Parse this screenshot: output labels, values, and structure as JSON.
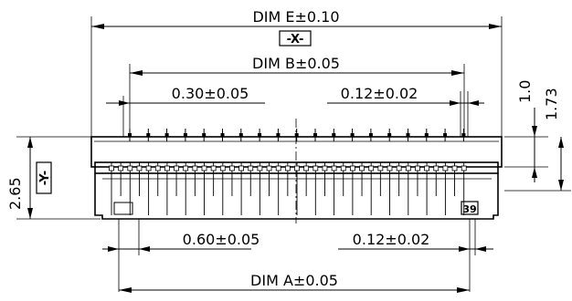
{
  "dims": {
    "dim_e": "DIM  E±0.10",
    "datum_x": "-X-",
    "dim_b": "DIM  B±0.05",
    "top_pitch": "0.30±0.05",
    "top_gap": "0.12±0.02",
    "height_1": "1.0",
    "height_2": "1.73",
    "left_height": "2.65",
    "datum_y": "-Y-",
    "bottom_pitch": "0.60±0.05",
    "bottom_gap": "0.12±0.02",
    "dim_a": "DIM  A±0.05",
    "pin_count": "39"
  }
}
